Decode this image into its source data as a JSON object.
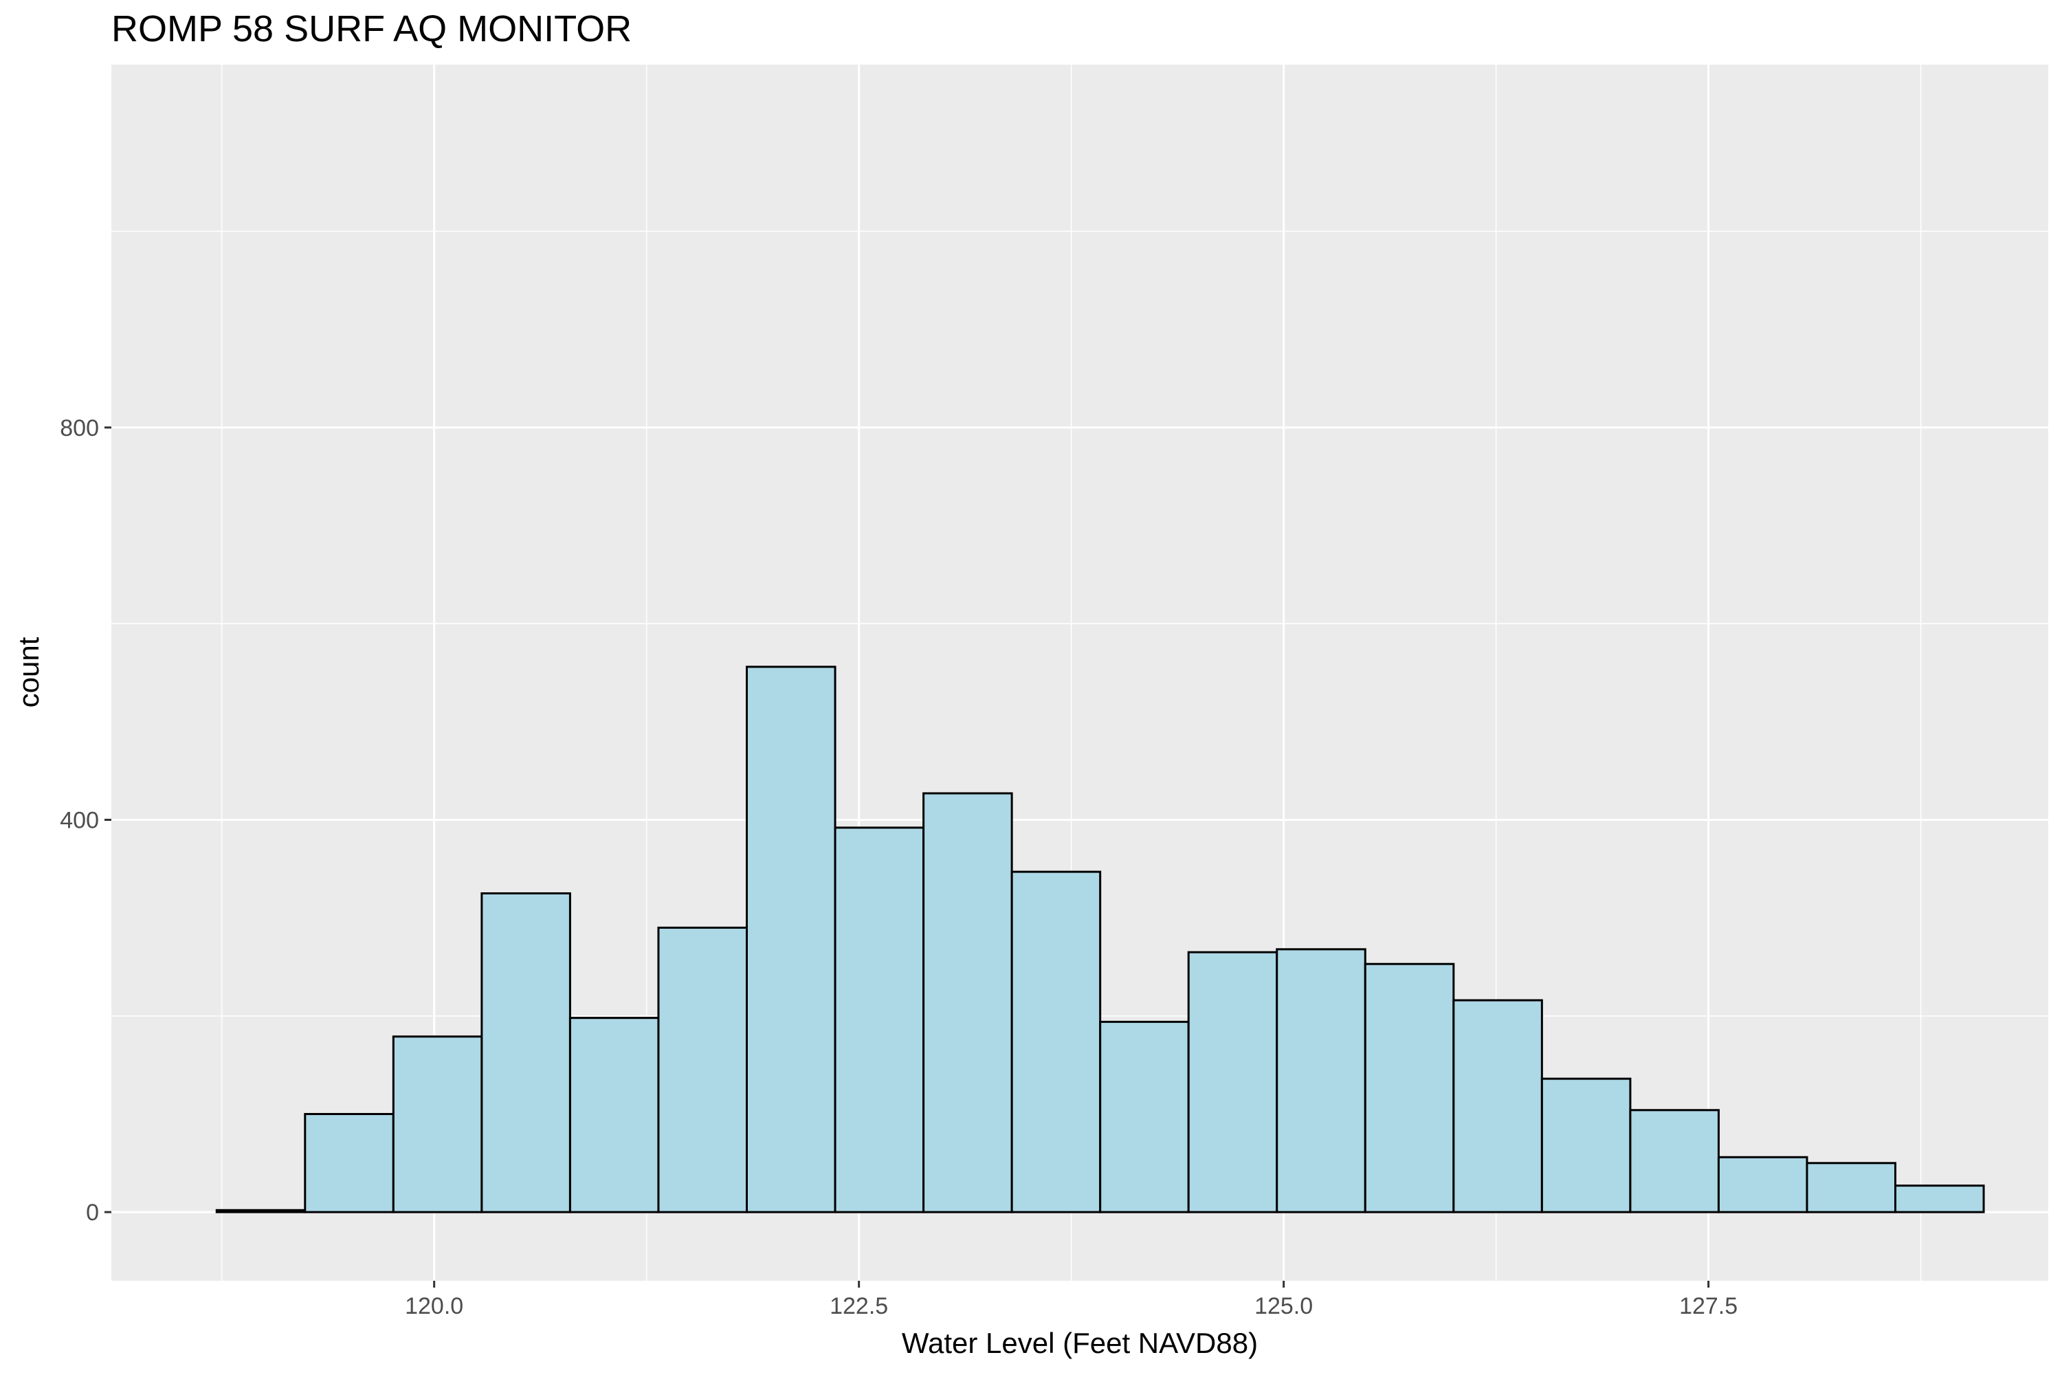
{
  "chart_data": {
    "type": "histogram",
    "title": "ROMP 58 SURF AQ MONITOR",
    "xlabel": "Water Level (Feet NAVD88)",
    "ylabel": "count",
    "xlim": [
      118.1,
      129.5
    ],
    "ylim": [
      -70,
      1170
    ],
    "x_ticks": [
      {
        "value": 120.0,
        "label": "120.0"
      },
      {
        "value": 122.5,
        "label": "122.5"
      },
      {
        "value": 125.0,
        "label": "125.0"
      },
      {
        "value": 127.5,
        "label": "127.5"
      }
    ],
    "y_ticks": [
      {
        "value": 0,
        "label": "0"
      },
      {
        "value": 400,
        "label": "400"
      },
      {
        "value": 800,
        "label": "800"
      }
    ],
    "grid": true,
    "fill_color": "#add8e6",
    "edge_color": "#000000",
    "panel_color": "#ebebeb",
    "bins": [
      {
        "x0": 118.72,
        "x1": 119.24,
        "count": 2
      },
      {
        "x0": 119.24,
        "x1": 119.76,
        "count": 100
      },
      {
        "x0": 119.76,
        "x1": 120.28,
        "count": 179
      },
      {
        "x0": 120.28,
        "x1": 120.8,
        "count": 325
      },
      {
        "x0": 120.8,
        "x1": 121.32,
        "count": 198
      },
      {
        "x0": 121.32,
        "x1": 121.84,
        "count": 290
      },
      {
        "x0": 121.84,
        "x1": 122.36,
        "count": 556
      },
      {
        "x0": 122.36,
        "x1": 122.88,
        "count": 392
      },
      {
        "x0": 122.88,
        "x1": 123.4,
        "count": 427
      },
      {
        "x0": 123.4,
        "x1": 123.92,
        "count": 347
      },
      {
        "x0": 123.92,
        "x1": 124.44,
        "count": 194
      },
      {
        "x0": 124.44,
        "x1": 124.96,
        "count": 265
      },
      {
        "x0": 124.96,
        "x1": 125.48,
        "count": 268
      },
      {
        "x0": 125.48,
        "x1": 126.0,
        "count": 253
      },
      {
        "x0": 126.0,
        "x1": 126.52,
        "count": 216
      },
      {
        "x0": 126.52,
        "x1": 127.04,
        "count": 136
      },
      {
        "x0": 127.04,
        "x1": 127.56,
        "count": 104
      },
      {
        "x0": 127.56,
        "x1": 128.08,
        "count": 56
      },
      {
        "x0": 128.08,
        "x1": 128.6,
        "count": 50
      },
      {
        "x0": 128.6,
        "x1": 129.12,
        "count": 27
      }
    ]
  }
}
